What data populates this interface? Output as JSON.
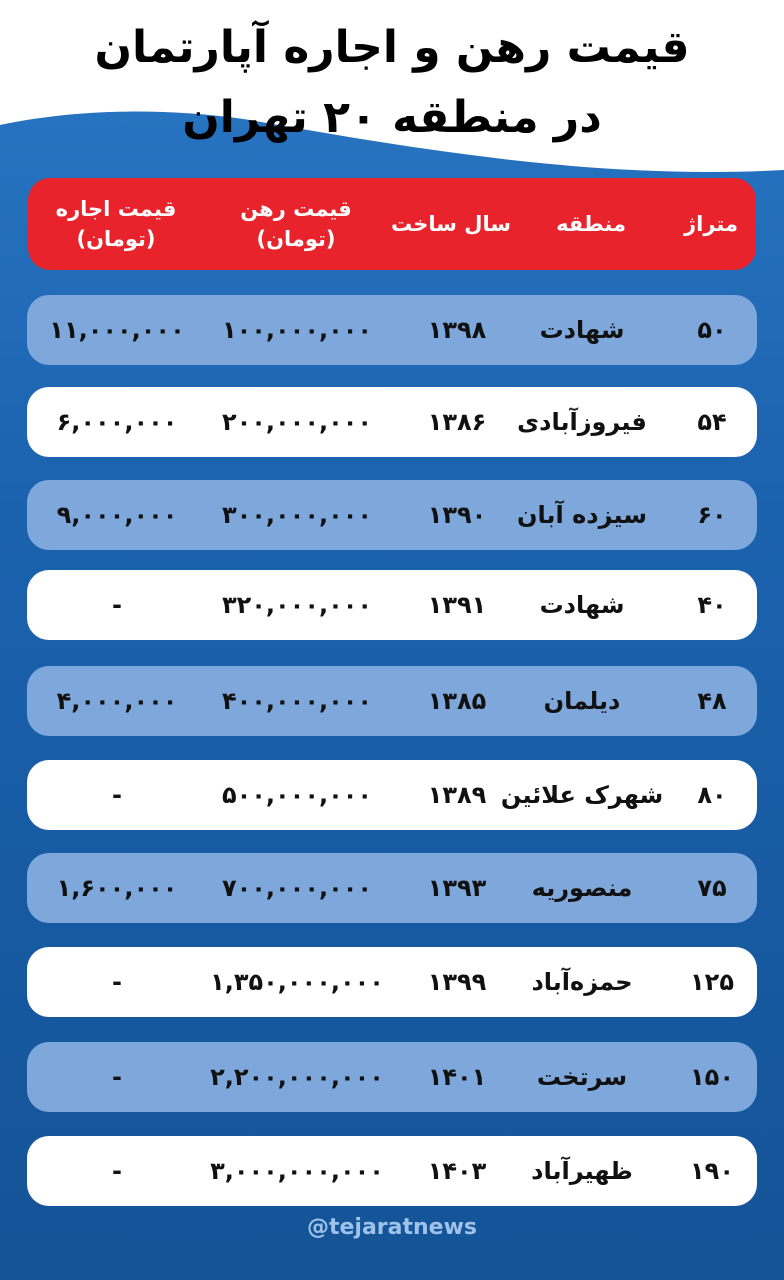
{
  "title": {
    "line1": "قیمت رهن و اجاره آپارتمان",
    "line2": "در منطقه ۲۰ تهران"
  },
  "colors": {
    "header": "#e8232b",
    "row_blue": "#7ea8dc",
    "row_white": "#ffffff",
    "background": "#1b62ae"
  },
  "table": {
    "headers": [
      {
        "label": "متراژ",
        "sub": ""
      },
      {
        "label": "منطقه",
        "sub": ""
      },
      {
        "label": "سال ساخت",
        "sub": ""
      },
      {
        "label": "قیمت رهن",
        "sub": "(تومان)"
      },
      {
        "label": "قیمت اجاره",
        "sub": "(تومان)"
      }
    ],
    "rows": [
      {
        "area": "۵۰",
        "region": "شهادت",
        "year": "۱۳۹۸",
        "rahn": "۱۰۰,۰۰۰,۰۰۰",
        "rent": "۱۱,۰۰۰,۰۰۰"
      },
      {
        "area": "۵۴",
        "region": "فیروزآبادی",
        "year": "۱۳۸۶",
        "rahn": "۲۰۰,۰۰۰,۰۰۰",
        "rent": "۶,۰۰۰,۰۰۰"
      },
      {
        "area": "۶۰",
        "region": "سیزده آبان",
        "year": "۱۳۹۰",
        "rahn": "۳۰۰,۰۰۰,۰۰۰",
        "rent": "۹,۰۰۰,۰۰۰"
      },
      {
        "area": "۴۰",
        "region": "شهادت",
        "year": "۱۳۹۱",
        "rahn": "۳۲۰,۰۰۰,۰۰۰",
        "rent": "-"
      },
      {
        "area": "۴۸",
        "region": "دیلمان",
        "year": "۱۳۸۵",
        "rahn": "۴۰۰,۰۰۰,۰۰۰",
        "rent": "۴,۰۰۰,۰۰۰"
      },
      {
        "area": "۸۰",
        "region": "شهرک علائین",
        "year": "۱۳۸۹",
        "rahn": "۵۰۰,۰۰۰,۰۰۰",
        "rent": "-"
      },
      {
        "area": "۷۵",
        "region": "منصوریه",
        "year": "۱۳۹۳",
        "rahn": "۷۰۰,۰۰۰,۰۰۰",
        "rent": "۱,۶۰۰,۰۰۰"
      },
      {
        "area": "۱۲۵",
        "region": "حمزه‌آباد",
        "year": "۱۳۹۹",
        "rahn": "۱,۳۵۰,۰۰۰,۰۰۰",
        "rent": "-"
      },
      {
        "area": "۱۵۰",
        "region": "سرتخت",
        "year": "۱۴۰۱",
        "rahn": "۲,۲۰۰,۰۰۰,۰۰۰",
        "rent": "-"
      },
      {
        "area": "۱۹۰",
        "region": "ظهیرآباد",
        "year": "۱۴۰۳",
        "rahn": "۳,۰۰۰,۰۰۰,۰۰۰",
        "rent": "-"
      }
    ]
  },
  "footer": {
    "handle": "@tejaratnews"
  }
}
